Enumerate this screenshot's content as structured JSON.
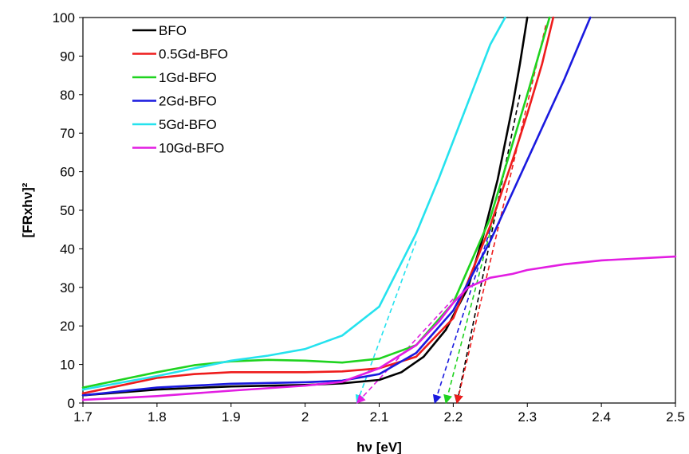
{
  "chart_data": {
    "type": "line",
    "title": "",
    "xlabel": "hν [eV]",
    "ylabel": "[FRxhν]²",
    "xlim": [
      1.7,
      2.5
    ],
    "ylim": [
      0,
      100
    ],
    "x_ticks": [
      "1.7",
      "1.8",
      "1.9",
      "2",
      "2.1",
      "2.2",
      "2.3",
      "2.4",
      "2.5"
    ],
    "y_ticks": [
      "0",
      "10",
      "20",
      "30",
      "40",
      "50",
      "60",
      "70",
      "80",
      "90",
      "100"
    ],
    "grid": false,
    "legend_position": "top-left",
    "series": [
      {
        "name": "BFO",
        "color": "#000000",
        "x": [
          1.7,
          1.8,
          1.9,
          2.0,
          2.05,
          2.1,
          2.13,
          2.16,
          2.19,
          2.22,
          2.24,
          2.26,
          2.28,
          2.29,
          2.3
        ],
        "y": [
          2,
          3.5,
          4.3,
          4.7,
          5.1,
          6,
          8,
          12,
          19,
          30,
          43,
          58,
          77,
          88,
          100
        ]
      },
      {
        "name": "0.5Gd-BFO",
        "color": "#ee1c1c",
        "x": [
          1.7,
          1.75,
          1.8,
          1.85,
          1.9,
          2.0,
          2.05,
          2.1,
          2.15,
          2.2,
          2.25,
          2.28,
          2.3,
          2.32,
          2.335
        ],
        "y": [
          2.5,
          4.5,
          6.5,
          7.5,
          8,
          8,
          8.2,
          9,
          12,
          22,
          46,
          63,
          75,
          88,
          100
        ]
      },
      {
        "name": "1Gd-BFO",
        "color": "#1fd31f",
        "x": [
          1.7,
          1.75,
          1.8,
          1.85,
          1.9,
          1.95,
          2.0,
          2.05,
          2.1,
          2.15,
          2.2,
          2.25,
          2.3,
          2.33
        ],
        "y": [
          4,
          6,
          8,
          9.8,
          10.8,
          11.2,
          11,
          10.5,
          11.5,
          15,
          26,
          48,
          80,
          100
        ]
      },
      {
        "name": "2Gd-BFO",
        "color": "#1a1adf",
        "x": [
          1.7,
          1.8,
          1.9,
          2.0,
          2.05,
          2.1,
          2.15,
          2.2,
          2.25,
          2.3,
          2.35,
          2.385
        ],
        "y": [
          2,
          4,
          5,
          5.4,
          5.8,
          7.5,
          13,
          24,
          42,
          63,
          84,
          100
        ]
      },
      {
        "name": "5Gd-BFO",
        "color": "#25e2ee",
        "x": [
          1.7,
          1.8,
          1.9,
          1.95,
          2.0,
          2.05,
          2.1,
          2.15,
          2.18,
          2.2,
          2.23,
          2.25,
          2.27
        ],
        "y": [
          3.5,
          7,
          11,
          12.3,
          14,
          17.5,
          25,
          44,
          58,
          68,
          83,
          93,
          100
        ]
      },
      {
        "name": "10Gd-BFO",
        "color": "#e21de2",
        "x": [
          1.7,
          1.8,
          1.9,
          2.0,
          2.05,
          2.1,
          2.15,
          2.18,
          2.2,
          2.22,
          2.25,
          2.28,
          2.3,
          2.35,
          2.4,
          2.45,
          2.5
        ],
        "y": [
          0.8,
          1.8,
          3.2,
          4.5,
          5.5,
          9,
          15,
          21,
          26,
          30,
          32.5,
          33.5,
          34.5,
          36,
          37,
          37.5,
          38
        ]
      }
    ],
    "extrapolations": [
      {
        "color": "#000000",
        "x": [
          2.205,
          2.29
        ],
        "y": [
          0,
          80
        ]
      },
      {
        "color": "#ee1c1c",
        "x": [
          2.205,
          2.325
        ],
        "y": [
          0,
          98
        ]
      },
      {
        "color": "#1fd31f",
        "x": [
          2.19,
          2.26
        ],
        "y": [
          0,
          52
        ]
      },
      {
        "color": "#1a1adf",
        "x": [
          2.175,
          2.25
        ],
        "y": [
          0,
          45
        ]
      },
      {
        "color": "#25e2ee",
        "x": [
          2.07,
          2.15
        ],
        "y": [
          0,
          42
        ]
      },
      {
        "color": "#e21de2",
        "x": [
          2.07,
          2.2
        ],
        "y": [
          0,
          27
        ]
      }
    ]
  }
}
